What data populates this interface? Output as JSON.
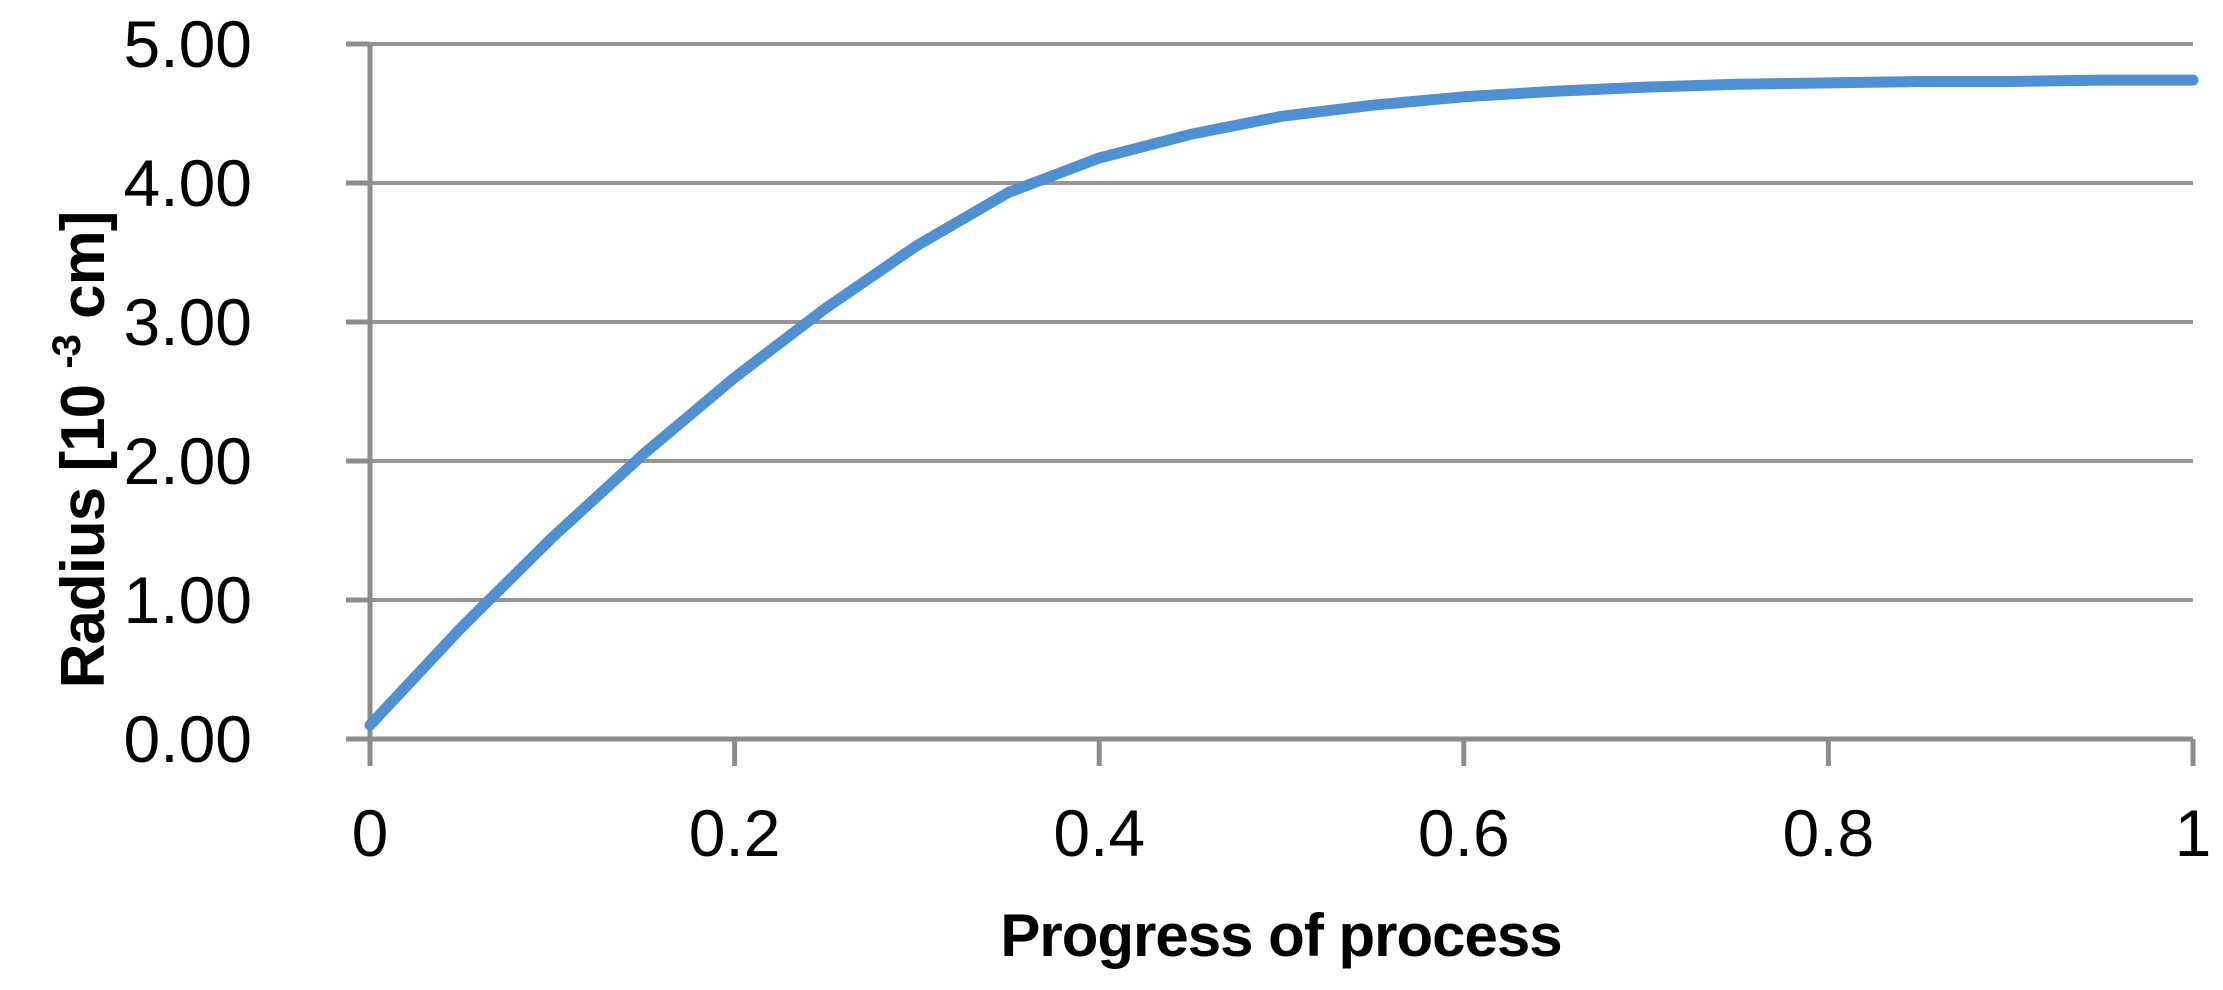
{
  "figure": {
    "background": "#ffffff"
  },
  "chart_data": {
    "type": "line",
    "title": "",
    "xlabel": "Progress of process",
    "ylabel_parts": {
      "prefix": "Radius [10",
      "superscript": "-3",
      "suffix": " cm]"
    },
    "ylabel_plain": "Radius [10^-3 cm]",
    "xlim": [
      0,
      1
    ],
    "ylim": [
      0,
      5
    ],
    "grid": "horizontal-only",
    "legend": "none",
    "xticks": {
      "values": [
        0,
        0.2,
        0.4,
        0.6,
        0.8,
        1
      ],
      "labels": [
        "0",
        "0.2",
        "0.4",
        "0.6",
        "0.8",
        "1"
      ]
    },
    "yticks": {
      "values": [
        0,
        1,
        2,
        3,
        4,
        5
      ],
      "labels": [
        "0.00",
        "1.00",
        "2.00",
        "3.00",
        "4.00",
        "5.00"
      ]
    },
    "x": [
      0,
      0.05,
      0.1,
      0.15,
      0.2,
      0.25,
      0.3,
      0.35,
      0.4,
      0.45,
      0.5,
      0.55,
      0.6,
      0.65,
      0.7,
      0.75,
      0.8,
      0.85,
      0.9,
      0.95,
      1.0
    ],
    "series": [
      {
        "name": "Radius",
        "values": [
          0.1,
          0.8,
          1.45,
          2.05,
          2.6,
          3.1,
          3.55,
          3.93,
          4.18,
          4.35,
          4.48,
          4.56,
          4.62,
          4.66,
          4.69,
          4.71,
          4.72,
          4.73,
          4.73,
          4.74,
          4.74
        ]
      }
    ],
    "colors": {
      "curve": "#4e90d2",
      "gridline": "#969696",
      "axis": "#8c8c8c",
      "text": "#000000"
    }
  }
}
